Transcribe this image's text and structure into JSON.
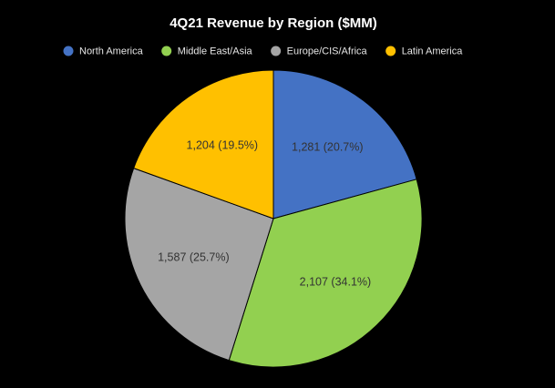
{
  "chart_data": {
    "type": "pie",
    "title": "4Q21 Revenue by Region ($MM)",
    "categories": [
      "North America",
      "Middle East/Asia",
      "Europe/CIS/Africa",
      "Latin America"
    ],
    "values": [
      1281,
      2107,
      1587,
      1204
    ],
    "value_labels": [
      "1,281 (20.7%)",
      "2,107 (34.1%)",
      "1,587 (25.7%)",
      "1,204 (19.5%)"
    ],
    "colors": [
      "#4472c4",
      "#92d050",
      "#a5a5a5",
      "#ffc000"
    ],
    "legend": "top"
  }
}
